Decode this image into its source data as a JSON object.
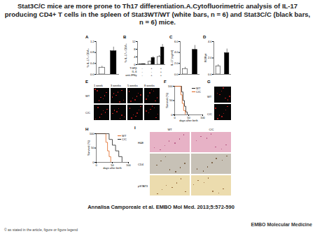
{
  "title": "Stat3C/C mice are more prone to Th17 differentiation.A.Cytofluorimetric analysis of IL-17 producing CD4+ T cells in the spleen of Stat3WT/WT (white bars, n = 6) and Stat3C/C (black bars, n = 6) mice.",
  "chart_data": [
    {
      "title": "A",
      "type": "bar",
      "y_label": "% IL-17+ CD4+",
      "categories": [
        null,
        null
      ],
      "values": [
        0.25,
        0.85
      ],
      "errors": [
        0.05,
        0.15
      ],
      "colors": [
        "#ffffff",
        "#000000"
      ],
      "ylim": [
        0,
        1.2
      ],
      "yticks": [
        0,
        0.4,
        0.8,
        1.2
      ]
    },
    {
      "title": "B",
      "type": "bar",
      "y_label": "% IL-17+ CD4+",
      "categories": [
        null,
        null,
        null
      ],
      "series": [
        {
          "color": "#ffffff",
          "values": [
            0.2,
            1.5,
            4
          ],
          "errors": [
            0.1,
            0.4,
            0.8
          ]
        },
        {
          "color": "#000000",
          "values": [
            0.3,
            3.5,
            9
          ],
          "errors": [
            0.1,
            0.7,
            1.5
          ]
        }
      ],
      "conditions": [
        {
          "label": "TGFβ",
          "marks": [
            "-",
            "+",
            "+"
          ]
        },
        {
          "label": "IL-6",
          "marks": [
            "-",
            "-",
            "+"
          ]
        },
        {
          "label": "anti-IFNγ",
          "marks": [
            "-",
            "+",
            "+"
          ]
        }
      ],
      "ylim": [
        0,
        12
      ],
      "yticks": [
        0,
        4,
        8,
        12
      ]
    },
    {
      "title": "C",
      "type": "bar",
      "y_label": "IL-17 (ng/ml)",
      "categories": [
        null,
        null
      ],
      "values": [
        1.0,
        4.5
      ],
      "errors": [
        0.3,
        0.8
      ],
      "colors": [
        "#ffffff",
        "#000000"
      ],
      "ylim": [
        0,
        6
      ],
      "yticks": [
        0,
        2,
        4,
        6
      ]
    },
    {
      "title": "D",
      "type": "bar",
      "y_label": "RORγt",
      "categories": [
        null,
        null
      ],
      "values": [
        1.0,
        2.6
      ],
      "errors": [
        0.2,
        0.5
      ],
      "colors": [
        "#ffffff",
        "#000000"
      ],
      "ylim": [
        0,
        4
      ],
      "yticks": [
        0,
        2,
        4
      ]
    },
    {
      "title": "F",
      "type": "line",
      "line_style": "step",
      "x_label": "days after birth",
      "y_label": "Survival (%)",
      "legend": "top-right",
      "series": [
        {
          "name": "WT",
          "color": "#222222",
          "x": [
            0,
            20,
            25,
            30,
            35,
            40,
            45
          ],
          "values": [
            100,
            100,
            80,
            50,
            30,
            10,
            0
          ]
        },
        {
          "name": "C/C",
          "color": "#e0641e",
          "x": [
            0,
            18,
            22,
            27,
            32,
            38
          ],
          "values": [
            100,
            100,
            70,
            40,
            15,
            0
          ]
        }
      ],
      "xlim": [
        0,
        100
      ],
      "xticks": [
        0,
        50,
        100
      ],
      "ylim": [
        0,
        100
      ],
      "yticks": [
        0,
        50,
        100
      ]
    },
    {
      "title": "H",
      "type": "line",
      "line_style": "step",
      "x_label": "days after birth",
      "y_label": "Survival (%)",
      "legend": "top-right",
      "series": [
        {
          "name": "WT",
          "color": "#e0641e",
          "x": [
            0,
            25,
            30,
            35,
            40,
            45
          ],
          "values": [
            100,
            100,
            70,
            40,
            20,
            0
          ]
        },
        {
          "name": "C/C",
          "color": "#222222",
          "x": [
            0,
            30,
            40,
            50,
            60,
            70,
            80
          ],
          "values": [
            100,
            100,
            80,
            60,
            40,
            20,
            0
          ]
        }
      ],
      "xlim": [
        0,
        100
      ],
      "xticks": [
        0,
        50,
        100
      ],
      "ylim": [
        0,
        100
      ],
      "yticks": [
        0,
        50,
        100
      ]
    }
  ],
  "images": [
    {
      "title": "E",
      "columns": [
        "1 week",
        "3 weeks",
        "5 weeks",
        "8 weeks"
      ],
      "rows": [
        "WT",
        "C/C"
      ]
    },
    {
      "title": "G",
      "rows": [
        "WT",
        "C/C"
      ]
    },
    {
      "title": "I",
      "columns": [
        "WT",
        "C/C"
      ],
      "rows": [
        "H&E",
        "CD4",
        "pSTAT3"
      ]
    }
  ],
  "citation": "Annalisa Camporeale et al. EMBO Mol Med. 2013;5:572-590",
  "copyright": "© as stated in the article, figure or figure legend",
  "journal": "EMBO Molecular Medicine"
}
